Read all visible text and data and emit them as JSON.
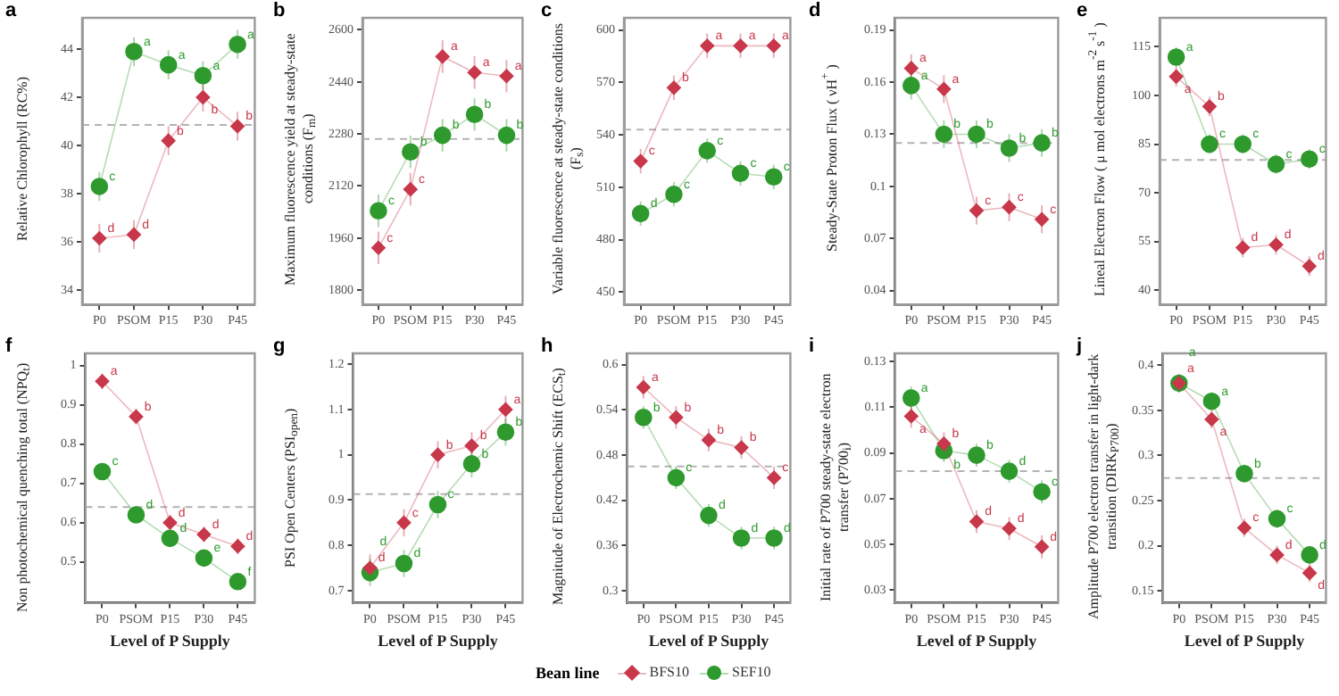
{
  "chart_data": [
    {
      "type": "line",
      "title": "a",
      "ylabel": "Relative Chlorophyll (RC%)",
      "categories": [
        "P0",
        "PSOM",
        "P15",
        "P30",
        "P45"
      ],
      "ylim": [
        33.4,
        45.3
      ],
      "yticks": [
        34,
        36,
        38,
        40,
        42,
        44
      ],
      "grid": false,
      "legend": "bottom",
      "legend_title": "Bean line",
      "ref_lines": [
        {
          "axis": "y",
          "value": 40.85,
          "color": "#b3b3b3",
          "line_style": "dashed"
        }
      ],
      "series": [
        {
          "name": "BFS10",
          "color": "#c8374a",
          "marker": "diamond",
          "values": [
            36.15,
            36.3,
            40.2,
            42.0,
            40.8
          ],
          "errors": [
            0.6,
            0.6,
            0.6,
            0.6,
            0.6
          ],
          "value_labels": [
            "d",
            "d",
            "b",
            "b",
            "b"
          ]
        },
        {
          "name": "SEF10",
          "color": "#2e9a2e",
          "marker": "circle",
          "values": [
            38.3,
            43.9,
            43.35,
            42.9,
            44.2
          ],
          "errors": [
            0.6,
            0.6,
            0.6,
            0.6,
            0.6
          ],
          "value_labels": [
            "c",
            "a",
            "a",
            "a",
            "a"
          ]
        }
      ]
    },
    {
      "type": "line",
      "title": "b",
      "ylabel": "Maximum fluorescence yield at steady-state conditions (F$_{m}$)",
      "categories": [
        "P0",
        "PSOM",
        "P15",
        "P30",
        "P45"
      ],
      "ylim": [
        1756,
        2637
      ],
      "yticks": [
        1800,
        1960,
        2120,
        2280,
        2440,
        2600
      ],
      "grid": false,
      "ref_lines": [
        {
          "axis": "y",
          "value": 2265,
          "color": "#b3b3b3",
          "line_style": "dashed"
        }
      ],
      "series": [
        {
          "color": "#c8374a",
          "marker": "diamond",
          "values": [
            1930,
            2110,
            2518,
            2469,
            2458
          ],
          "errors": [
            50,
            50,
            50,
            50,
            50
          ],
          "value_labels": [
            "c",
            "c",
            "a",
            "a",
            "a"
          ]
        },
        {
          "color": "#2e9a2e",
          "marker": "circle",
          "values": [
            2044,
            2225,
            2276,
            2340,
            2276
          ],
          "errors": [
            50,
            50,
            50,
            50,
            50
          ],
          "value_labels": [
            "c",
            "b",
            "b",
            "b",
            "b"
          ]
        }
      ]
    },
    {
      "type": "line",
      "title": "c",
      "ylabel": "Variable fluorescence at steady-state conditions (F$_{s}$)",
      "categories": [
        "P0",
        "PSOM",
        "P15",
        "P30",
        "P45"
      ],
      "ylim": [
        443,
        607
      ],
      "yticks": [
        450,
        480,
        510,
        540,
        570,
        600
      ],
      "grid": false,
      "ref_lines": [
        {
          "axis": "y",
          "value": 543,
          "color": "#b3b3b3",
          "line_style": "dashed"
        }
      ],
      "series": [
        {
          "color": "#c8374a",
          "marker": "diamond",
          "values": [
            525,
            567,
            591,
            591,
            591
          ],
          "errors": [
            7,
            7,
            7,
            7,
            7
          ],
          "value_labels": [
            "c",
            "b",
            "a",
            "a",
            "a"
          ]
        },
        {
          "color": "#2e9a2e",
          "marker": "circle",
          "values": [
            495,
            506,
            531,
            518,
            516
          ],
          "errors": [
            7,
            7,
            7,
            7,
            7
          ],
          "value_labels": [
            "d",
            "c",
            "c",
            "c",
            "c"
          ]
        }
      ]
    },
    {
      "type": "line",
      "title": "d",
      "ylabel": "Steady-State Proton Flux ( νH$^{+}$ )",
      "categories": [
        "P0",
        "PSOM",
        "P15",
        "P30",
        "P45"
      ],
      "ylim": [
        0.032,
        0.197
      ],
      "yticks": [
        0.04,
        0.07,
        0.1,
        0.13,
        0.16,
        0.19
      ],
      "grid": false,
      "ref_lines": [
        {
          "axis": "y",
          "value": 0.125,
          "color": "#b3b3b3",
          "line_style": "dashed"
        }
      ],
      "series": [
        {
          "color": "#c8374a",
          "marker": "diamond",
          "values": [
            0.168,
            0.156,
            0.086,
            0.088,
            0.081
          ],
          "errors": [
            0.008,
            0.008,
            0.008,
            0.008,
            0.008
          ],
          "value_labels": [
            "a",
            "a",
            "c",
            "c",
            "c"
          ]
        },
        {
          "color": "#2e9a2e",
          "marker": "circle",
          "values": [
            0.158,
            0.13,
            0.13,
            0.122,
            0.125
          ],
          "errors": [
            0.008,
            0.008,
            0.008,
            0.008,
            0.008
          ],
          "value_labels": [
            "a",
            "b",
            "b",
            "b",
            "b"
          ]
        }
      ]
    },
    {
      "type": "line",
      "title": "e",
      "ylabel": "Lineal Electron Flow ( μ mol electrons  m$^{-2}$ s$^{-1}$ )",
      "categories": [
        "P0",
        "PSOM",
        "P15",
        "P30",
        "P45"
      ],
      "ylim": [
        35.6,
        123.9
      ],
      "yticks": [
        40,
        55,
        70,
        85,
        100,
        115
      ],
      "grid": false,
      "ref_lines": [
        {
          "axis": "y",
          "value": 80.1,
          "color": "#b3b3b3",
          "line_style": "dashed"
        }
      ],
      "series": [
        {
          "color": "#c8374a",
          "marker": "diamond",
          "values": [
            105.8,
            96.6,
            53.1,
            54,
            47.4
          ],
          "errors": [
            3,
            3,
            3,
            3,
            3
          ],
          "value_labels": [
            "a",
            "b",
            "d",
            "d",
            "d"
          ]
        },
        {
          "color": "#2e9a2e",
          "marker": "circle",
          "values": [
            111.8,
            85,
            85,
            78.8,
            80.4
          ],
          "errors": [
            3,
            3,
            3,
            3,
            3
          ],
          "value_labels": [
            "a",
            "c",
            "c",
            "c",
            "c"
          ]
        }
      ]
    },
    {
      "type": "line",
      "title": "f",
      "ylabel": "Non photochemical quenching total (NPQ$_{t}$)",
      "xlabel": "Level of P Supply",
      "categories": [
        "P0",
        "PSOM",
        "P15",
        "P30",
        "P45"
      ],
      "ylim": [
        0.396,
        1.031
      ],
      "yticks": [
        0.5,
        0.6,
        0.7,
        0.8,
        0.9,
        1.0
      ],
      "grid": false,
      "ref_lines": [
        {
          "axis": "y",
          "value": 0.64,
          "color": "#b3b3b3",
          "line_style": "dashed"
        }
      ],
      "series": [
        {
          "color": "#c8374a",
          "marker": "diamond",
          "values": [
            0.96,
            0.87,
            0.6,
            0.57,
            0.54
          ],
          "errors": [
            0.02,
            0.02,
            0.02,
            0.02,
            0.02
          ],
          "value_labels": [
            "a",
            "b",
            "d",
            "d",
            "d"
          ]
        },
        {
          "color": "#2e9a2e",
          "marker": "circle",
          "values": [
            0.73,
            0.62,
            0.56,
            0.51,
            0.45
          ],
          "errors": [
            0.02,
            0.02,
            0.02,
            0.02,
            0.02
          ],
          "value_labels": [
            "c",
            "d",
            "d",
            "e",
            "f"
          ]
        }
      ]
    },
    {
      "type": "line",
      "title": "g",
      "ylabel": "PSI Open Centers (PSI$_{open}$)",
      "xlabel": "Level of P Supply",
      "categories": [
        "P0",
        "PSOM",
        "P15",
        "P30",
        "P45"
      ],
      "ylim": [
        0.673,
        1.224
      ],
      "yticks": [
        0.7,
        0.8,
        0.9,
        1.0,
        1.1,
        1.2
      ],
      "grid": false,
      "ref_lines": [
        {
          "axis": "y",
          "value": 0.913,
          "color": "#b3b3b3",
          "line_style": "dashed"
        }
      ],
      "series": [
        {
          "color": "#c8374a",
          "marker": "diamond",
          "values": [
            0.75,
            0.85,
            1.0,
            1.02,
            1.1
          ],
          "errors": [
            0.03,
            0.03,
            0.03,
            0.03,
            0.03
          ],
          "value_labels": [
            "d",
            "c",
            "b",
            "b",
            "a"
          ]
        },
        {
          "color": "#2e9a2e",
          "marker": "circle",
          "values": [
            0.74,
            0.76,
            0.89,
            0.98,
            1.05
          ],
          "errors": [
            0.03,
            0.03,
            0.03,
            0.03,
            0.03
          ],
          "value_labels": [
            "d",
            "d",
            "c",
            "b",
            "b"
          ]
        }
      ]
    },
    {
      "type": "line",
      "title": "h",
      "ylabel": "Magnitude of Electrochemic Shift (ECS$_{t}$)",
      "xlabel": "Level of P Supply",
      "categories": [
        "P0",
        "PSOM",
        "P15",
        "P30",
        "P45"
      ],
      "ylim": [
        0.284,
        0.615
      ],
      "yticks": [
        0.3,
        0.36,
        0.42,
        0.48,
        0.54,
        0.6
      ],
      "grid": false,
      "ref_lines": [
        {
          "axis": "y",
          "value": 0.465,
          "color": "#b3b3b3",
          "line_style": "dashed"
        }
      ],
      "series": [
        {
          "color": "#c8374a",
          "marker": "diamond",
          "values": [
            0.57,
            0.53,
            0.5,
            0.49,
            0.45
          ],
          "errors": [
            0.015,
            0.015,
            0.015,
            0.015,
            0.015
          ],
          "value_labels": [
            "a",
            "b",
            "b",
            "b",
            "c"
          ]
        },
        {
          "color": "#2e9a2e",
          "marker": "circle",
          "values": [
            0.53,
            0.45,
            0.4,
            0.37,
            0.37
          ],
          "errors": [
            0.015,
            0.015,
            0.015,
            0.015,
            0.015
          ],
          "value_labels": [
            "b",
            "c",
            "d",
            "d",
            "d"
          ]
        }
      ]
    },
    {
      "type": "line",
      "title": "i",
      "ylabel": "Initial rate of P700 steady-state electron transfer (P700$_{i}$)",
      "xlabel": "Level of P Supply",
      "categories": [
        "P0",
        "PSOM",
        "P15",
        "P30",
        "P45"
      ],
      "ylim": [
        0.0245,
        0.1335
      ],
      "yticks": [
        0.03,
        0.05,
        0.07,
        0.09,
        0.11,
        0.13
      ],
      "grid": false,
      "ref_lines": [
        {
          "axis": "y",
          "value": 0.082,
          "color": "#b3b3b3",
          "line_style": "dashed"
        }
      ],
      "series": [
        {
          "color": "#c8374a",
          "marker": "diamond",
          "values": [
            0.106,
            0.094,
            0.06,
            0.057,
            0.049
          ],
          "errors": [
            0.005,
            0.005,
            0.005,
            0.005,
            0.005
          ],
          "value_labels": [
            "a",
            "b",
            "d",
            "d",
            "d"
          ]
        },
        {
          "color": "#2e9a2e",
          "marker": "circle",
          "values": [
            0.114,
            0.091,
            0.089,
            0.082,
            0.073
          ],
          "errors": [
            0.005,
            0.005,
            0.005,
            0.005,
            0.005
          ],
          "value_labels": [
            "a",
            "b",
            "b",
            "d",
            "c"
          ]
        }
      ]
    },
    {
      "type": "line",
      "title": "j",
      "ylabel": "Amplitude P700 electron transfer in light-dark transition (DIRK$_{P700}$)",
      "xlabel": "Level of P Supply",
      "categories": [
        "P0",
        "PSOM",
        "P15",
        "P30",
        "P45"
      ],
      "ylim": [
        0.137,
        0.413
      ],
      "yticks": [
        0.15,
        0.2,
        0.25,
        0.3,
        0.35,
        0.4
      ],
      "grid": false,
      "ref_lines": [
        {
          "axis": "y",
          "value": 0.275,
          "color": "#b3b3b3",
          "line_style": "dashed"
        }
      ],
      "series": [
        {
          "color": "#c8374a",
          "marker": "diamond",
          "values": [
            0.38,
            0.34,
            0.22,
            0.19,
            0.17
          ],
          "errors": [
            0.01,
            0.01,
            0.01,
            0.01,
            0.01
          ],
          "value_labels": [
            "a",
            "a",
            "c",
            "d",
            "d"
          ]
        },
        {
          "color": "#2e9a2e",
          "marker": "circle",
          "values": [
            0.38,
            0.36,
            0.28,
            0.23,
            0.19
          ],
          "errors": [
            0.01,
            0.01,
            0.01,
            0.01,
            0.01
          ],
          "value_labels": [
            "a",
            "a",
            "b",
            "c",
            "d"
          ]
        }
      ]
    }
  ]
}
